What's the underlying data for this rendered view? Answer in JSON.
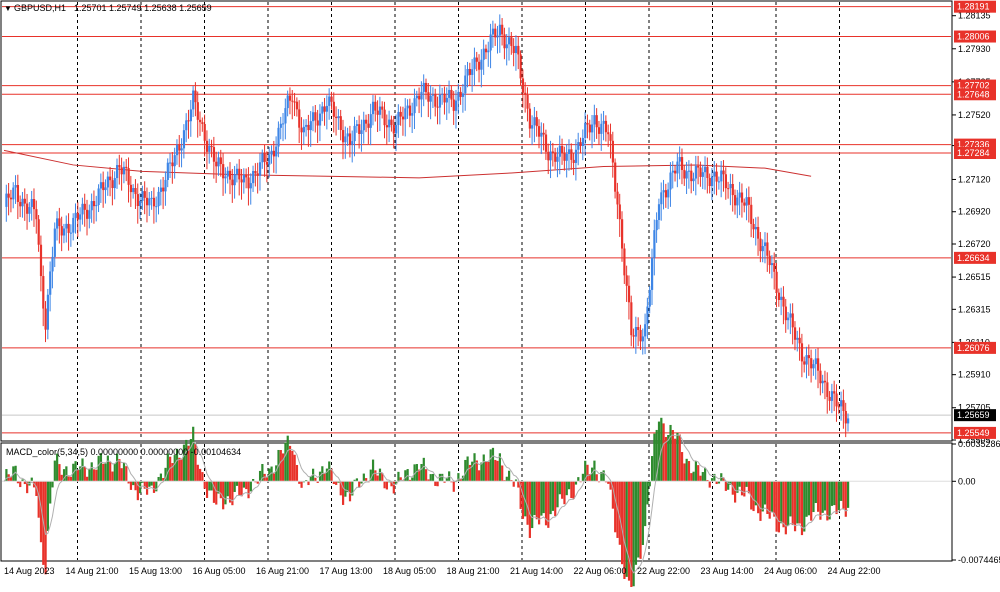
{
  "header": {
    "symbol_label": "GBPUSD,H1",
    "ohlc_values": "1.25701 1.25749 1.25638 1.25659"
  },
  "price_axis": {
    "ticks": [
      "1.28135",
      "1.27930",
      "1.27725",
      "1.27520",
      "1.27330",
      "1.27120",
      "1.26920",
      "1.26720",
      "1.26515",
      "1.26315",
      "1.26110",
      "1.25910",
      "1.25705",
      "1.25505"
    ],
    "current_price": "1.25659"
  },
  "levels": [
    {
      "price": 1.28191,
      "label": "1.28191"
    },
    {
      "price": 1.28006,
      "label": "1.28006"
    },
    {
      "price": 1.27702,
      "label": "1.27702"
    },
    {
      "price": 1.27648,
      "label": "1.27648"
    },
    {
      "price": 1.27336,
      "label": "1.27336"
    },
    {
      "price": 1.27284,
      "label": "1.27284"
    },
    {
      "price": 1.26634,
      "label": "1.26634"
    },
    {
      "price": 1.26076,
      "label": "1.26076"
    },
    {
      "price": 1.25549,
      "label": "1.25549"
    }
  ],
  "time_axis": {
    "labels": [
      "14 Aug 2023",
      "14 Aug 21:00",
      "15 Aug 13:00",
      "16 Aug 05:00",
      "16 Aug 21:00",
      "17 Aug 13:00",
      "18 Aug 05:00",
      "18 Aug 21:00",
      "21 Aug 14:00",
      "22 Aug 06:00",
      "22 Aug 22:00",
      "23 Aug 14:00",
      "24 Aug 06:00",
      "24 Aug 22:00"
    ]
  },
  "macd": {
    "label": "MACD_color(5,34,5) 0.00000000 0.00000000 -0.00104634",
    "ticks": [
      "0.0035286",
      "0.00",
      "-0.0074465"
    ]
  },
  "colors": {
    "bull": "#3d85e6",
    "bear": "#e8322a",
    "level_line": "#e8322a",
    "level_tag": "#e8322a",
    "grid_dash": "#000000",
    "ma_line": "#cc3030",
    "macd_up": "#2e8b2e",
    "macd_down": "#e8322a",
    "signal_line": "#b0b0b0",
    "current_price_tag": "#000000"
  },
  "chart_data": {
    "type": "candlestick",
    "symbol": "GBPUSD",
    "timeframe": "H1",
    "ylim": [
      1.25505,
      1.2822
    ],
    "x_count": 210,
    "key_closes": [
      [
        0,
        1.2695
      ],
      [
        5,
        1.2705
      ],
      [
        10,
        1.2695
      ],
      [
        14,
        1.269
      ],
      [
        16,
        1.265
      ],
      [
        18,
        1.2625
      ],
      [
        22,
        1.268
      ],
      [
        30,
        1.2685
      ],
      [
        40,
        1.27
      ],
      [
        50,
        1.272
      ],
      [
        56,
        1.2705
      ],
      [
        64,
        1.2695
      ],
      [
        74,
        1.2725
      ],
      [
        82,
        1.276
      ],
      [
        92,
        1.272
      ],
      [
        104,
        1.271
      ],
      [
        115,
        1.2725
      ],
      [
        125,
        1.2765
      ],
      [
        130,
        1.274
      ],
      [
        140,
        1.276
      ],
      [
        150,
        1.2735
      ],
      [
        160,
        1.2755
      ],
      [
        170,
        1.2745
      ],
      [
        180,
        1.2765
      ],
      [
        195,
        1.276
      ],
      [
        205,
        1.2785
      ],
      [
        215,
        1.2805
      ],
      [
        222,
        1.279
      ],
      [
        228,
        1.275
      ],
      [
        236,
        1.273
      ],
      [
        242,
        1.2725
      ],
      [
        248,
        1.273
      ],
      [
        256,
        1.275
      ],
      [
        262,
        1.274
      ],
      [
        266,
        1.27
      ],
      [
        272,
        1.2615
      ],
      [
        278,
        1.262
      ],
      [
        284,
        1.27
      ],
      [
        292,
        1.272
      ],
      [
        300,
        1.2715
      ],
      [
        308,
        1.2715
      ],
      [
        316,
        1.2705
      ],
      [
        322,
        1.2695
      ],
      [
        332,
        1.266
      ],
      [
        340,
        1.2625
      ],
      [
        346,
        1.2605
      ],
      [
        354,
        1.259
      ],
      [
        362,
        1.257
      ],
      [
        366,
        1.2566
      ]
    ],
    "moving_average": [
      [
        0,
        1.273
      ],
      [
        30,
        1.2721
      ],
      [
        60,
        1.2717
      ],
      [
        100,
        1.2715
      ],
      [
        140,
        1.2714
      ],
      [
        180,
        1.2713
      ],
      [
        220,
        1.2716
      ],
      [
        260,
        1.272
      ],
      [
        300,
        1.2721
      ],
      [
        330,
        1.2719
      ],
      [
        350,
        1.2714
      ]
    ]
  }
}
